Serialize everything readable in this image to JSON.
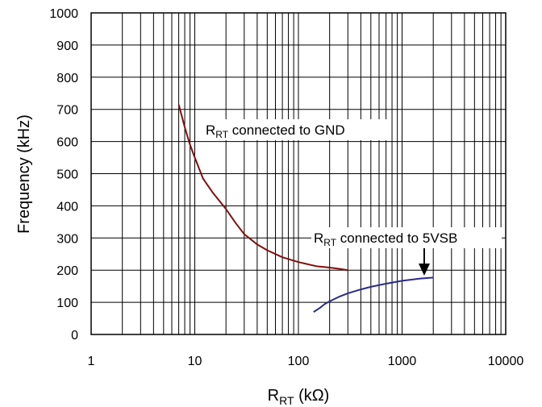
{
  "chart_data": {
    "type": "line",
    "title": "",
    "xlabel": {
      "main": "R",
      "sub": "RT",
      "unit": " (kΩ)"
    },
    "ylabel": "Frequency (kHz)",
    "xscale": "log",
    "xlim": [
      1,
      10000
    ],
    "ylim": [
      0,
      1000
    ],
    "grid": true,
    "x_tick_labels": [
      "1",
      "10",
      "100",
      "1000",
      "10000"
    ],
    "y_tick_labels": [
      "0",
      "100",
      "200",
      "300",
      "400",
      "500",
      "600",
      "700",
      "800",
      "900",
      "1000"
    ],
    "series": [
      {
        "name": "RRT connected to GND",
        "color": "#7f1010",
        "x": [
          7,
          8,
          9,
          10,
          12,
          15,
          20,
          25,
          30,
          40,
          50,
          70,
          100,
          150,
          200,
          250,
          300
        ],
        "y": [
          715,
          645,
          590,
          550,
          485,
          440,
          390,
          345,
          312,
          280,
          262,
          240,
          225,
          212,
          208,
          204,
          200
        ]
      },
      {
        "name": "RRT connected to 5VSB",
        "color": "#2a2a8c",
        "x": [
          140,
          160,
          180,
          200,
          250,
          300,
          400,
          500,
          700,
          1000,
          1500,
          2000
        ],
        "y": [
          70,
          82,
          95,
          103,
          118,
          128,
          140,
          148,
          158,
          167,
          174,
          177
        ]
      }
    ],
    "annotations": [
      {
        "id": "gnd",
        "main": "R",
        "sub": "RT",
        "rest": " connected to GND"
      },
      {
        "id": "vsb",
        "main": "R",
        "sub": "RT",
        "rest": " connected to 5VSB"
      }
    ]
  }
}
